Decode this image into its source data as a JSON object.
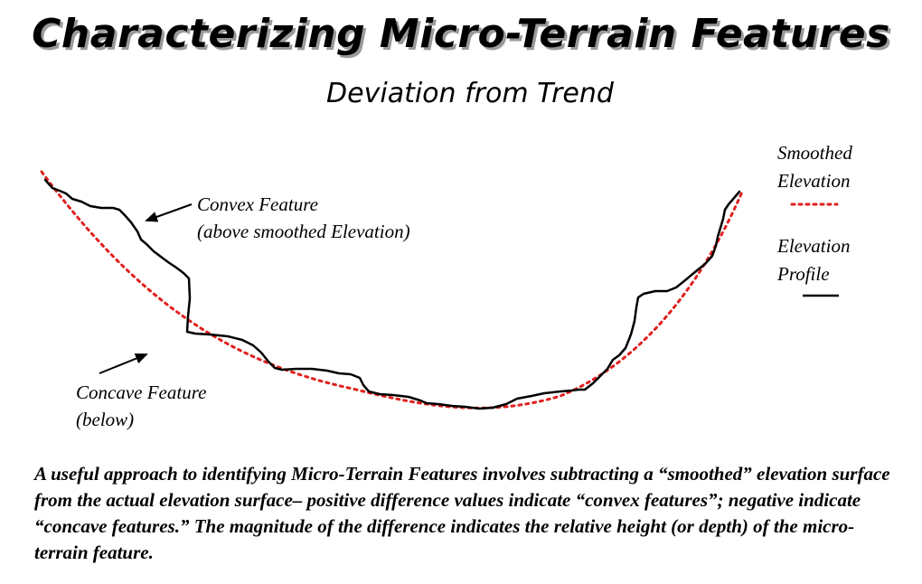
{
  "title": "Characterizing Micro-Terrain Features",
  "subtitle": "Deviation from Trend",
  "labels": {
    "convex_line1": "Convex Feature",
    "convex_line2": "(above smoothed Elevation)",
    "concave_line1": "Concave Feature",
    "concave_line2": "(below)"
  },
  "legend": {
    "smoothed_line1": "Smoothed",
    "smoothed_line2": "Elevation",
    "profile_line1": "Elevation",
    "profile_line2": "Profile"
  },
  "caption": "A useful approach to identifying Micro-Terrain Features involves subtracting a “smoothed” elevation surface from the actual elevation surface– positive difference values indicate “convex features”; negative indicate “concave features.”  The magnitude of the difference indicates the relative height (or depth) of the micro-terrain feature.",
  "colors": {
    "smoothed": "#e0201e",
    "profile": "#000000"
  }
}
